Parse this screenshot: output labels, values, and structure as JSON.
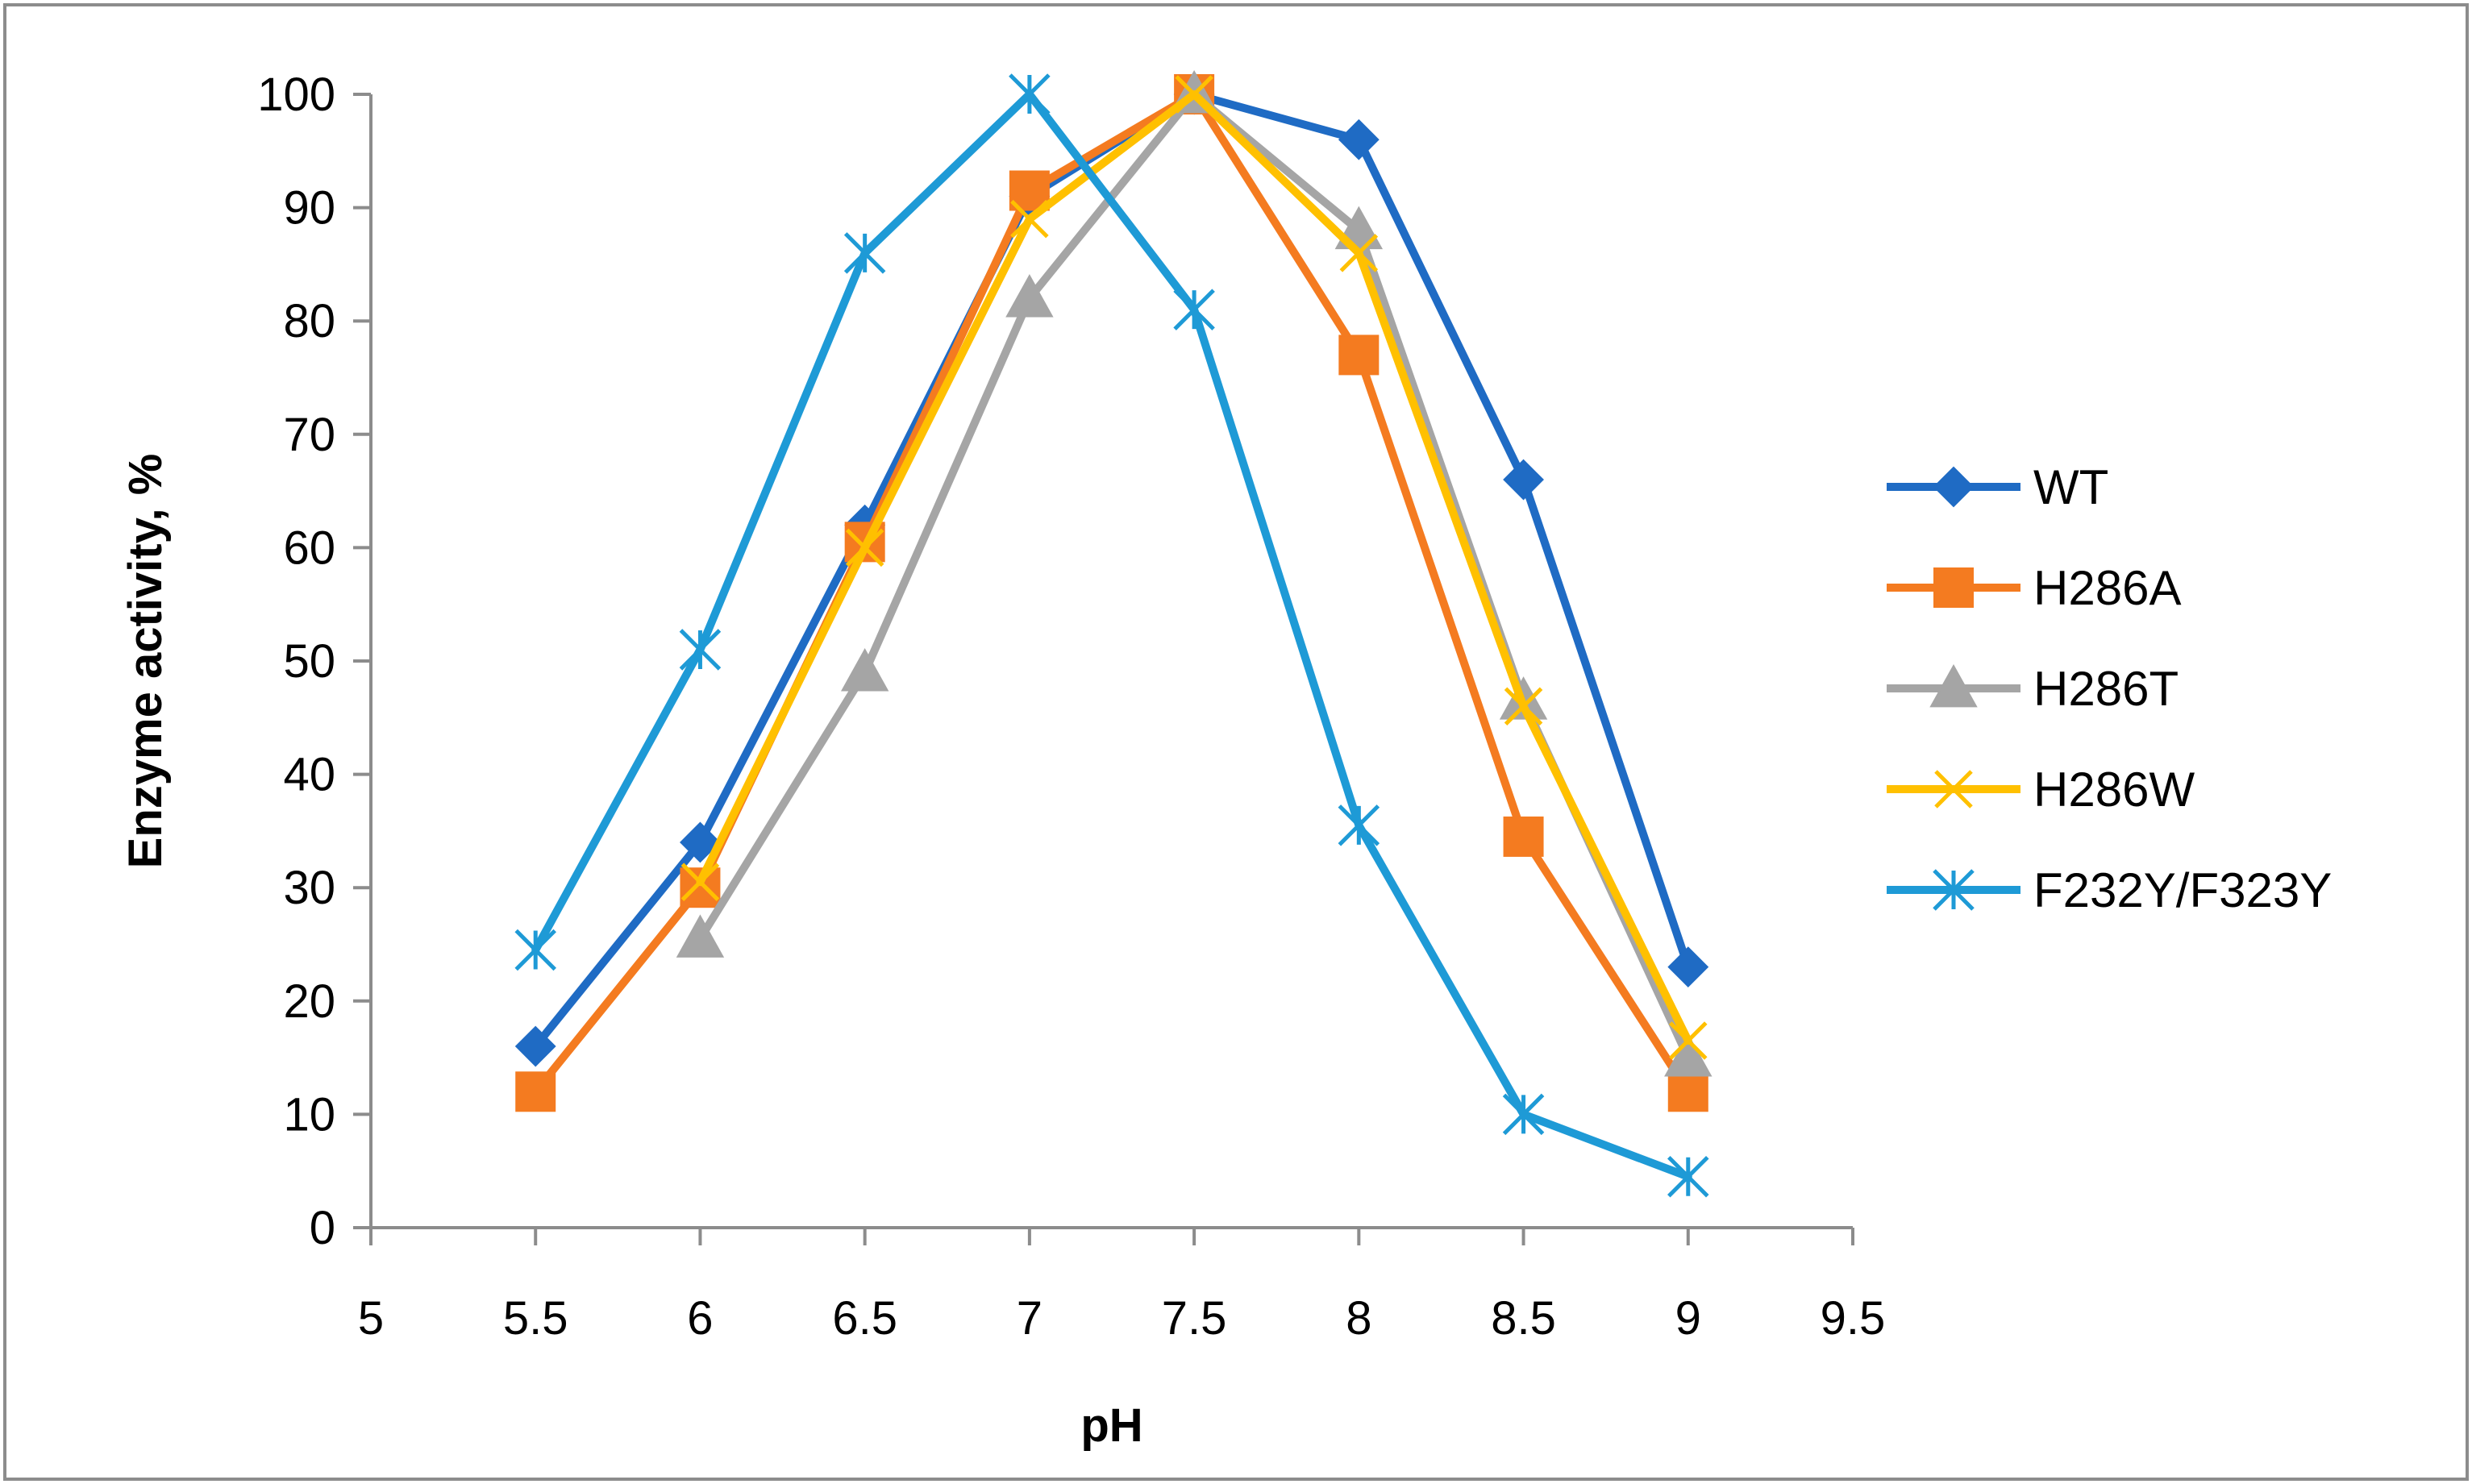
{
  "chart_data": {
    "type": "line",
    "title": "",
    "xlabel": "pH",
    "ylabel": "Enzyme activity, %",
    "xlim": [
      5,
      9.5
    ],
    "ylim": [
      0,
      100
    ],
    "x_ticks": [
      "5",
      "5.5",
      "6",
      "6.5",
      "7",
      "7.5",
      "8",
      "8.5",
      "9",
      "9.5"
    ],
    "y_ticks": [
      "0",
      "10",
      "20",
      "30",
      "40",
      "50",
      "60",
      "70",
      "80",
      "90",
      "100"
    ],
    "x_tick_values": [
      5,
      5.5,
      6,
      6.5,
      7,
      7.5,
      8,
      8.5,
      9,
      9.5
    ],
    "y_tick_values": [
      0,
      10,
      20,
      30,
      40,
      50,
      60,
      70,
      80,
      90,
      100
    ],
    "grid": false,
    "legend_position": "right",
    "x": [
      5.5,
      6,
      6.5,
      7,
      7.5,
      8,
      8.5,
      9
    ],
    "series": [
      {
        "name": "WT",
        "marker": "diamond",
        "color": "#1F6BC4",
        "x": [
          5.5,
          6,
          6.5,
          7,
          7.5,
          8,
          8.5,
          9
        ],
        "values": [
          16,
          34,
          62,
          91,
          100,
          96,
          66,
          23
        ]
      },
      {
        "name": "H286A",
        "marker": "square",
        "color": "#F47B20",
        "x": [
          5.5,
          6,
          6.5,
          7,
          7.5,
          8,
          8.5,
          9
        ],
        "values": [
          12,
          30,
          60.5,
          91.5,
          100,
          77,
          34.5,
          12
        ]
      },
      {
        "name": "H286T",
        "marker": "triangle",
        "color": "#A5A5A5",
        "x": [
          6,
          6.5,
          7,
          7.5,
          8,
          8.5,
          9
        ],
        "values": [
          25.5,
          49,
          82,
          100,
          88,
          46.5,
          15
        ]
      },
      {
        "name": "H286W",
        "marker": "x",
        "color": "#FFC000",
        "x": [
          6,
          6.5,
          7,
          7.5,
          8,
          8.5,
          9
        ],
        "values": [
          30.5,
          60,
          89,
          100,
          86,
          46,
          16.5
        ]
      },
      {
        "name": "F232Y/F323Y",
        "marker": "asterisk",
        "color": "#1E9AD6",
        "x": [
          5.5,
          6,
          6.5,
          7,
          7.5,
          8,
          8.5,
          9
        ],
        "values": [
          24.5,
          51,
          86,
          100,
          81,
          35.5,
          10,
          4.5
        ]
      }
    ]
  }
}
